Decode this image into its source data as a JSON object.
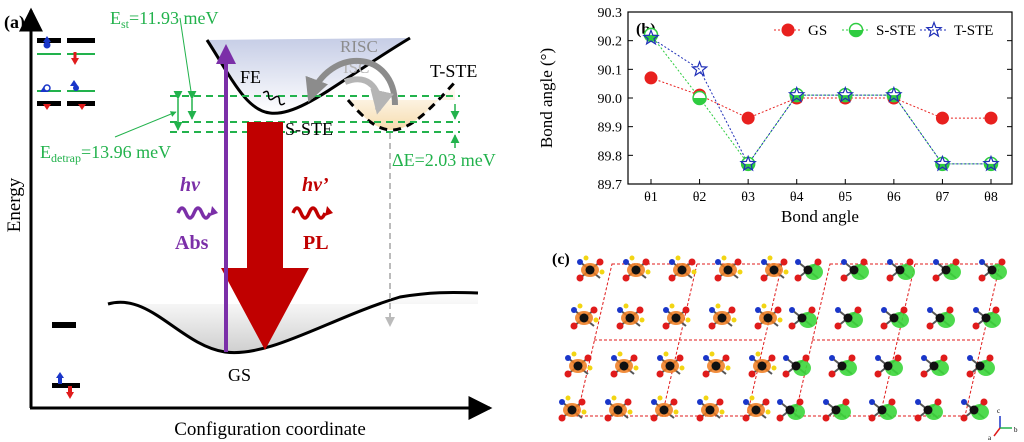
{
  "panel_a": {
    "label": "(a)",
    "y_axis_title": "Energy",
    "x_axis_title": "Configuration coordinate",
    "est_label": "E",
    "est_sub": "st",
    "est_value": "=11.93 meV",
    "edetrap_label": "E",
    "edetrap_sub": "detrap",
    "edetrap_value": "=13.96 meV",
    "delta_e": "ΔE=2.03 meV",
    "fe": "FE",
    "risc": "RISC",
    "isc": "ISC",
    "t_ste": "T-STE",
    "s_ste": "S-STE",
    "gs": "GS",
    "abs_hv": "hv",
    "abs_label": "Abs",
    "pl_hv": "hv’",
    "pl_label": "PL",
    "colors": {
      "absorption": "#7b2fa8",
      "emission": "#c00000",
      "energy_labels": "#22b24c"
    }
  },
  "panel_b": {
    "label": "(b)",
    "chart_data": {
      "type": "line",
      "xlabel": "Bond angle",
      "ylabel": "Bond angle (°)",
      "categories": [
        "θ1",
        "θ2",
        "θ3",
        "θ4",
        "θ5",
        "θ6",
        "θ7",
        "θ8"
      ],
      "ylim": [
        89.7,
        90.3
      ],
      "yticks": [
        "89.7",
        "89.8",
        "89.9",
        "90.0",
        "90.1",
        "90.2",
        "90.3"
      ],
      "legend_position": "top-right",
      "series": [
        {
          "name": "GS",
          "marker": "filled-circle",
          "color": "#e8201e",
          "values": [
            90.07,
            90.01,
            89.93,
            90.0,
            90.0,
            90.0,
            89.93,
            89.93
          ]
        },
        {
          "name": "S-STE",
          "marker": "half-circle",
          "color": "#2ecc40",
          "values": [
            90.22,
            90.0,
            89.77,
            90.01,
            90.01,
            90.01,
            89.77,
            89.77
          ]
        },
        {
          "name": "T-STE",
          "marker": "open-star",
          "color": "#1f2fb8",
          "values": [
            90.21,
            90.1,
            89.77,
            90.01,
            90.01,
            90.01,
            89.77,
            89.77
          ]
        }
      ]
    }
  },
  "panel_c": {
    "label": "(c)",
    "axis_labels": [
      "c",
      "a",
      "b"
    ]
  }
}
